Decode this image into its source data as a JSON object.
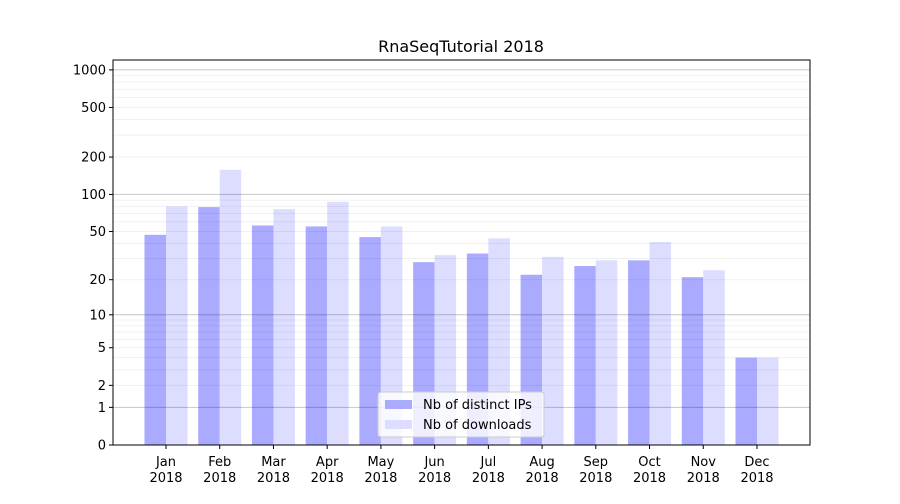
{
  "chart_data": {
    "type": "bar",
    "title": "RnaSeqTutorial 2018",
    "xlabel": "",
    "ylabel": "",
    "yscale": "symlog (log10(1+y))",
    "ylim": [
      0,
      1200
    ],
    "yticks": [
      0,
      1,
      2,
      5,
      10,
      20,
      50,
      100,
      200,
      500,
      1000
    ],
    "grid": true,
    "legend_placement": "lower-center",
    "categories": [
      "Jan\n2018",
      "Feb\n2018",
      "Mar\n2018",
      "Apr\n2018",
      "May\n2018",
      "Jun\n2018",
      "Jul\n2018",
      "Aug\n2018",
      "Sep\n2018",
      "Oct\n2018",
      "Nov\n2018",
      "Dec\n2018"
    ],
    "series": [
      {
        "name": "Nb of distinct IPs",
        "color": "#aaaaff",
        "values": [
          47,
          79,
          56,
          55,
          45,
          28,
          33,
          22,
          26,
          29,
          21,
          4
        ]
      },
      {
        "name": "Nb of downloads",
        "color": "#ddddff",
        "values": [
          80,
          158,
          76,
          87,
          55,
          32,
          44,
          31,
          29,
          41,
          24,
          4
        ]
      }
    ]
  }
}
